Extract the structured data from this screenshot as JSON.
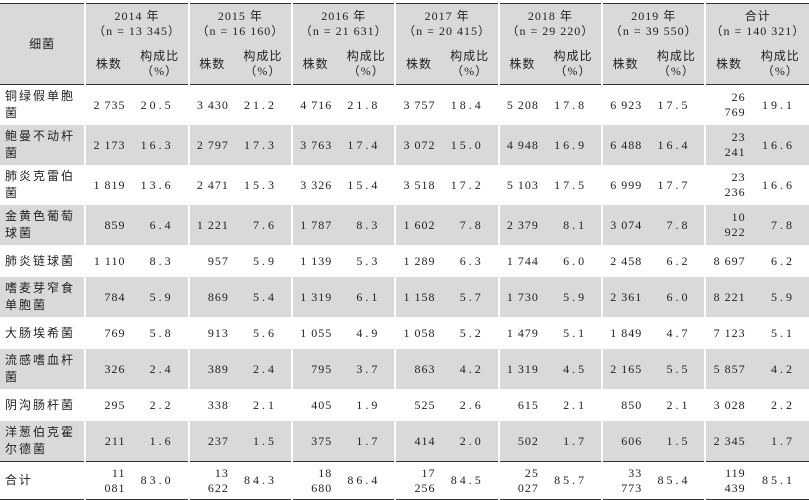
{
  "header": {
    "bacteria": "细菌",
    "count": "株数",
    "ratio": "构成比",
    "ratio_unit": "（%）",
    "groups": [
      {
        "year": "2014 年",
        "n": "（n = 13 345）"
      },
      {
        "year": "2015 年",
        "n": "（n = 16 160）"
      },
      {
        "year": "2016 年",
        "n": "（n = 21 631）"
      },
      {
        "year": "2017 年",
        "n": "（n = 20 415）"
      },
      {
        "year": "2018 年",
        "n": "（n = 29 220）"
      },
      {
        "year": "2019 年",
        "n": "（n = 39 550）"
      },
      {
        "year": "合计",
        "n": "（n = 140 321）"
      }
    ]
  },
  "rows": [
    {
      "name": "铜绿假单胞菌",
      "cells": [
        [
          "2 735",
          "20.5"
        ],
        [
          "3 430",
          "21.2"
        ],
        [
          "4 716",
          "21.8"
        ],
        [
          "3 757",
          "18.4"
        ],
        [
          "5 208",
          "17.8"
        ],
        [
          "6 923",
          "17.5"
        ],
        [
          "26 769",
          "19.1"
        ]
      ]
    },
    {
      "name": "鲍曼不动杆菌",
      "cells": [
        [
          "2 173",
          "16.3"
        ],
        [
          "2 797",
          "17.3"
        ],
        [
          "3 763",
          "17.4"
        ],
        [
          "3 072",
          "15.0"
        ],
        [
          "4 948",
          "16.9"
        ],
        [
          "6 488",
          "16.4"
        ],
        [
          "23 241",
          "16.6"
        ]
      ]
    },
    {
      "name": "肺炎克雷伯菌",
      "cells": [
        [
          "1 819",
          "13.6"
        ],
        [
          "2 471",
          "15.3"
        ],
        [
          "3 326",
          "15.4"
        ],
        [
          "3 518",
          "17.2"
        ],
        [
          "5 103",
          "17.5"
        ],
        [
          "6 999",
          "17.7"
        ],
        [
          "23 236",
          "16.6"
        ]
      ]
    },
    {
      "name": "金黄色葡萄球菌",
      "cells": [
        [
          "859",
          "6.4"
        ],
        [
          "1 221",
          "7.6"
        ],
        [
          "1 787",
          "8.3"
        ],
        [
          "1 602",
          "7.8"
        ],
        [
          "2 379",
          "8.1"
        ],
        [
          "3 074",
          "7.8"
        ],
        [
          "10 922",
          "7.8"
        ]
      ]
    },
    {
      "name": "肺炎链球菌",
      "cells": [
        [
          "1 110",
          "8.3"
        ],
        [
          "957",
          "5.9"
        ],
        [
          "1 139",
          "5.3"
        ],
        [
          "1 289",
          "6.3"
        ],
        [
          "1 744",
          "6.0"
        ],
        [
          "2 458",
          "6.2"
        ],
        [
          "8 697",
          "6.2"
        ]
      ]
    },
    {
      "name": "嗜麦芽窄食单胞菌",
      "cells": [
        [
          "784",
          "5.9"
        ],
        [
          "869",
          "5.4"
        ],
        [
          "1 319",
          "6.1"
        ],
        [
          "1 158",
          "5.7"
        ],
        [
          "1 730",
          "5.9"
        ],
        [
          "2 361",
          "6.0"
        ],
        [
          "8 221",
          "5.9"
        ]
      ]
    },
    {
      "name": "大肠埃希菌",
      "cells": [
        [
          "769",
          "5.8"
        ],
        [
          "913",
          "5.6"
        ],
        [
          "1 055",
          "4.9"
        ],
        [
          "1 058",
          "5.2"
        ],
        [
          "1 479",
          "5.1"
        ],
        [
          "1 849",
          "4.7"
        ],
        [
          "7 123",
          "5.1"
        ]
      ]
    },
    {
      "name": "流感嗜血杆菌",
      "cells": [
        [
          "326",
          "2.4"
        ],
        [
          "389",
          "2.4"
        ],
        [
          "795",
          "3.7"
        ],
        [
          "863",
          "4.2"
        ],
        [
          "1 319",
          "4.5"
        ],
        [
          "2 165",
          "5.5"
        ],
        [
          "5 857",
          "4.2"
        ]
      ]
    },
    {
      "name": "阴沟肠杆菌",
      "cells": [
        [
          "295",
          "2.2"
        ],
        [
          "338",
          "2.1"
        ],
        [
          "405",
          "1.9"
        ],
        [
          "525",
          "2.6"
        ],
        [
          "615",
          "2.1"
        ],
        [
          "850",
          "2.1"
        ],
        [
          "3 028",
          "2.2"
        ]
      ]
    },
    {
      "name": "洋葱伯克霍尔德菌",
      "cells": [
        [
          "211",
          "1.6"
        ],
        [
          "237",
          "1.5"
        ],
        [
          "375",
          "1.7"
        ],
        [
          "414",
          "2.0"
        ],
        [
          "502",
          "1.7"
        ],
        [
          "606",
          "1.5"
        ],
        [
          "2 345",
          "1.7"
        ]
      ]
    },
    {
      "name": "合计",
      "cells": [
        [
          "11 081",
          "83.0"
        ],
        [
          "13 622",
          "84.3"
        ],
        [
          "18 680",
          "86.4"
        ],
        [
          "17 256",
          "84.5"
        ],
        [
          "25 027",
          "85.7"
        ],
        [
          "33 773",
          "85.4"
        ],
        [
          "119 439",
          "85.1"
        ]
      ]
    }
  ]
}
